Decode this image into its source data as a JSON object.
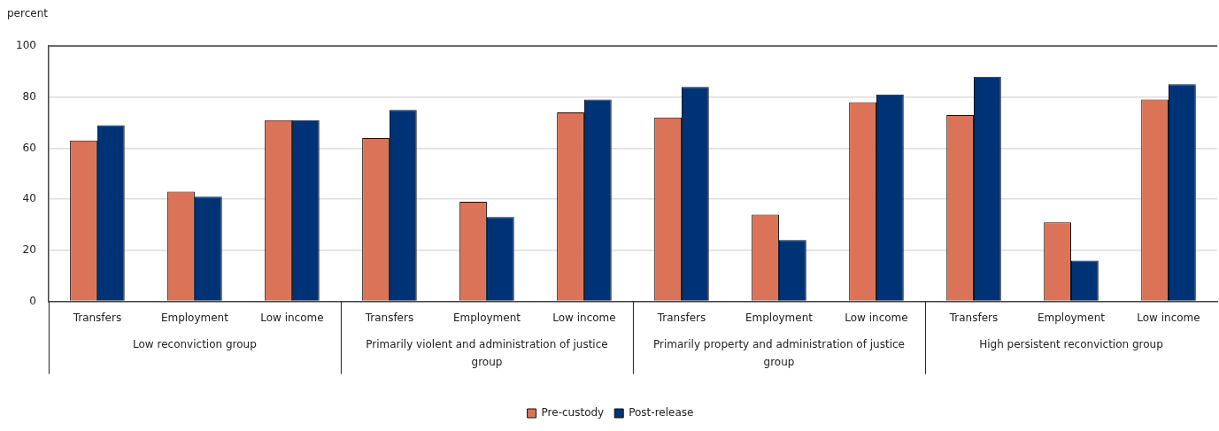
{
  "chart_data": {
    "type": "bar",
    "ylabel": "percent",
    "categories": [
      "Transfers",
      "Employment",
      "Low income",
      "Transfers",
      "Employment",
      "Low income",
      "Transfers",
      "Employment",
      "Low income",
      "Transfers",
      "Employment",
      "Low income"
    ],
    "annotations": [
      "Low reconviction group",
      "Primarily violent and administration of justice group",
      "Primarily property and administration of justice group",
      "High persistent reconviction group"
    ],
    "series": [
      {
        "name": "Pre-custody",
        "color": "#da7357",
        "values": [
          63,
          43,
          71,
          64,
          39,
          74,
          72,
          34,
          78,
          73,
          31,
          79
        ]
      },
      {
        "name": "Post-release",
        "color": "#003375",
        "values": [
          69,
          41,
          71,
          75,
          33,
          79,
          84,
          24,
          81,
          88,
          16,
          85
        ]
      }
    ],
    "ylim": [
      0,
      100
    ],
    "yticks": [
      0,
      20,
      40,
      60,
      80,
      100
    ],
    "grid": "y",
    "legend": "bottom"
  }
}
